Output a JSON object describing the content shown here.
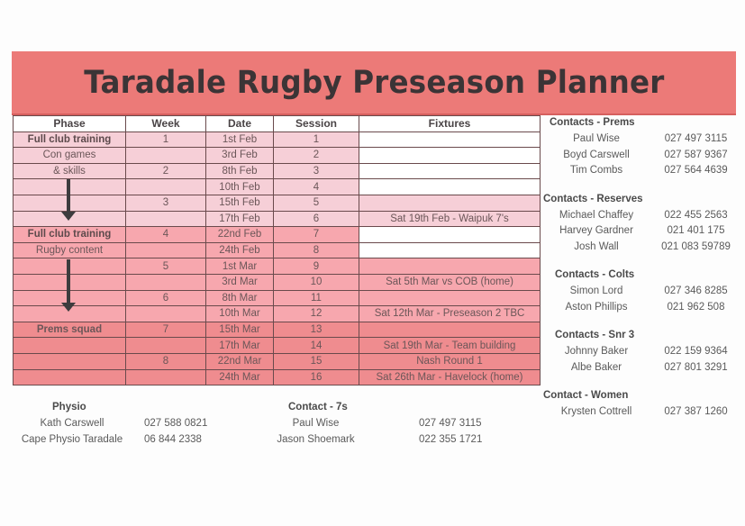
{
  "title": "Taradale Rugby Preseason Planner",
  "colors": {
    "banner": "#ec7a78",
    "shade_1": "#f6cfd7",
    "shade_2": "#f7a7ae",
    "shade_3": "#ef8c8f",
    "fixture_white": "#ffffff"
  },
  "table": {
    "headers": [
      "Phase",
      "Week",
      "Date",
      "Session",
      "Fixtures"
    ],
    "rows": [
      {
        "phase": "Full club training",
        "week": "1",
        "date": "1st Feb",
        "session": "1",
        "fixture": ""
      },
      {
        "phase": "Con games",
        "week": "",
        "date": "3rd Feb",
        "session": "2",
        "fixture": ""
      },
      {
        "phase": "& skills",
        "week": "2",
        "date": "8th Feb",
        "session": "3",
        "fixture": ""
      },
      {
        "phase": "",
        "week": "",
        "date": "10th Feb",
        "session": "4",
        "fixture": ""
      },
      {
        "phase": "",
        "week": "3",
        "date": "15th Feb",
        "session": "5",
        "fixture": ""
      },
      {
        "phase": "",
        "week": "",
        "date": "17th Feb",
        "session": "6",
        "fixture": "Sat 19th Feb - Waipuk 7's"
      },
      {
        "phase": "Full club training",
        "week": "4",
        "date": "22nd Feb",
        "session": "7",
        "fixture": ""
      },
      {
        "phase": "Rugby content",
        "week": "",
        "date": "24th Feb",
        "session": "8",
        "fixture": ""
      },
      {
        "phase": "",
        "week": "5",
        "date": "1st Mar",
        "session": "9",
        "fixture": ""
      },
      {
        "phase": "",
        "week": "",
        "date": "3rd Mar",
        "session": "10",
        "fixture": "Sat 5th Mar vs COB (home)"
      },
      {
        "phase": "",
        "week": "6",
        "date": "8th Mar",
        "session": "11",
        "fixture": ""
      },
      {
        "phase": "",
        "week": "",
        "date": "10th Mar",
        "session": "12",
        "fixture": "Sat 12th Mar - Preseason 2 TBC"
      },
      {
        "phase": "Prems squad",
        "week": "7",
        "date": "15th Mar",
        "session": "13",
        "fixture": ""
      },
      {
        "phase": "",
        "week": "",
        "date": "17th Mar",
        "session": "14",
        "fixture": "Sat 19th Mar - Team building"
      },
      {
        "phase": "",
        "week": "8",
        "date": "22nd Mar",
        "session": "15",
        "fixture": "Nash Round 1"
      },
      {
        "phase": "",
        "week": "",
        "date": "24th Mar",
        "session": "16",
        "fixture": "Sat 26th Mar - Havelock (home)"
      }
    ]
  },
  "contacts": [
    {
      "heading": "Contacts - Prems",
      "people": [
        {
          "name": "Paul Wise",
          "phone": "027 497 3115"
        },
        {
          "name": "Boyd Carswell",
          "phone": "027 587 9367"
        },
        {
          "name": "Tim Combs",
          "phone": "027 564 4639"
        }
      ]
    },
    {
      "heading": "Contacts - Reserves",
      "people": [
        {
          "name": "Michael Chaffey",
          "phone": "022 455 2563"
        },
        {
          "name": "Harvey Gardner",
          "phone": "021 401 175"
        },
        {
          "name": "Josh Wall",
          "phone": "021 083 59789"
        }
      ]
    },
    {
      "heading": "Contacts - Colts",
      "people": [
        {
          "name": "Simon Lord",
          "phone": "027 346 8285"
        },
        {
          "name": "Aston Phillips",
          "phone": "021 962 508"
        }
      ]
    },
    {
      "heading": "Contacts - Snr 3",
      "people": [
        {
          "name": "Johnny Baker",
          "phone": "022 159 9364"
        },
        {
          "name": "Albe Baker",
          "phone": "027 801 3291"
        }
      ]
    },
    {
      "heading": "Contact - Women",
      "people": [
        {
          "name": "Krysten Cottrell",
          "phone": "027 387 1260"
        }
      ]
    }
  ],
  "physio": {
    "heading": "Physio",
    "people": [
      {
        "name": "Kath Carswell",
        "phone": "027 588 0821"
      },
      {
        "name": "Cape Physio Taradale",
        "phone": "06 844 2338"
      }
    ]
  },
  "sevens": {
    "heading": "Contact - 7s",
    "people": [
      {
        "name": "Paul Wise",
        "phone": "027 497 3115"
      },
      {
        "name": "Jason Shoemark",
        "phone": "022 355 1721"
      }
    ]
  }
}
